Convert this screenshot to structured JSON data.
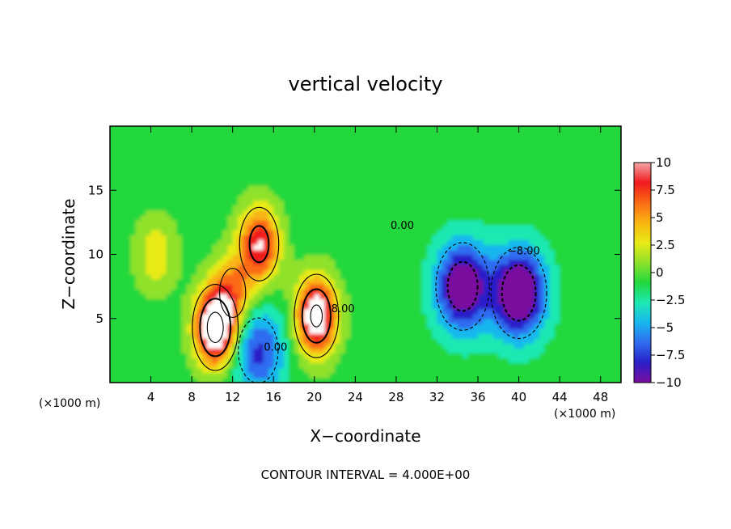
{
  "chart_data": {
    "type": "heatmap",
    "title": "vertical velocity",
    "xlabel": "X−coordinate",
    "ylabel": "Z−coordinate",
    "x_unit_left": "(×1000 m)",
    "x_unit_right": "(×1000 m)",
    "xlim": [
      0,
      50
    ],
    "ylim": [
      0,
      20
    ],
    "x_ticks": [
      4,
      8,
      12,
      16,
      20,
      24,
      28,
      32,
      36,
      40,
      44,
      48
    ],
    "y_ticks": [
      5,
      10,
      15
    ],
    "colorbar": {
      "min": -10,
      "max": 10,
      "ticks": [
        10,
        7.5,
        5,
        2.5,
        0,
        -2.5,
        -5,
        -7.5,
        -10
      ],
      "tick_labels": [
        "10",
        "7.5",
        "5",
        "2.5",
        "0",
        "−2.5",
        "−5",
        "−7.5",
        "−10"
      ]
    },
    "contour_interval_text": "CONTOUR INTERVAL = 4.000E+00",
    "contour_labels": [
      {
        "text": "0.00",
        "x": 28.6,
        "z": 12.0
      },
      {
        "text": "0.00",
        "x": 16.2,
        "z": 2.5
      },
      {
        "text": "8.00",
        "x": 22.8,
        "z": 5.5
      },
      {
        "text": "−8.00",
        "x": 40.5,
        "z": 10.0
      }
    ],
    "features": [
      {
        "kind": "updraft",
        "x": 10.3,
        "z": 4.3,
        "peak": 14
      },
      {
        "kind": "updraft",
        "x": 14.6,
        "z": 10.8,
        "peak": 10
      },
      {
        "kind": "updraft",
        "x": 20.2,
        "z": 5.2,
        "peak": 13
      },
      {
        "kind": "updraft",
        "x": 12.0,
        "z": 7.0,
        "peak": 6
      },
      {
        "kind": "updraft",
        "x": 4.5,
        "z": 10.0,
        "peak": 4
      },
      {
        "kind": "downdraft",
        "x": 34.5,
        "z": 7.5,
        "peak": -11
      },
      {
        "kind": "downdraft",
        "x": 40.0,
        "z": 7.0,
        "peak": -12
      },
      {
        "kind": "downdraft",
        "x": 14.5,
        "z": 2.5,
        "peak": -7
      }
    ],
    "colors": {
      "scale": [
        "#7a0d9e",
        "#2a1fc8",
        "#2f6cf0",
        "#18b7ef",
        "#1de8b2",
        "#21d83c",
        "#8fe12a",
        "#e8ea16",
        "#f9b412",
        "#fb6a14",
        "#f01a1e",
        "#f4a6a8",
        "#ffffff"
      ]
    }
  }
}
